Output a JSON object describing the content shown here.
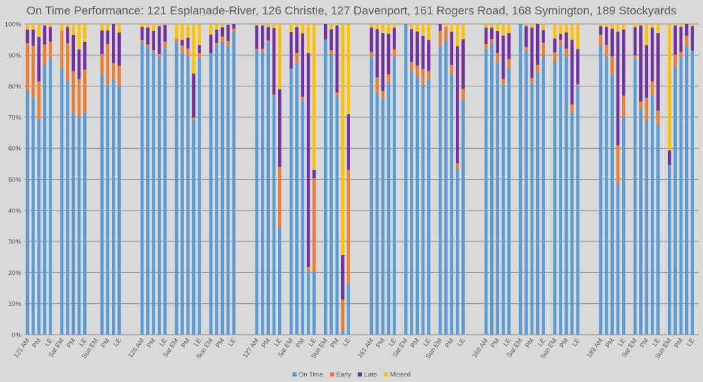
{
  "chart_data": {
    "type": "bar",
    "stacked": true,
    "title": "On Time Performance: 121 Esplanade-River, 126 Christie, 127 Davenport, 161 Rogers Road, 168 Symington, 189 Stockyards",
    "xlabel": "",
    "ylabel": "",
    "ylim": [
      0,
      100
    ],
    "y_ticks": [
      "0%",
      "10%",
      "20%",
      "30%",
      "40%",
      "50%",
      "60%",
      "70%",
      "80%",
      "90%",
      "100%"
    ],
    "grid": true,
    "legend_position": "bottom",
    "series_order": [
      "On Time",
      "Early",
      "Late",
      "Missed"
    ],
    "colors": {
      "On Time": "#5b9bd5",
      "Early": "#ed7d31",
      "Late": "#7030a0",
      "Missed": "#ffc000"
    },
    "legend": [
      {
        "name": "On Time",
        "color": "#5b9bd5"
      },
      {
        "name": "Early",
        "color": "#ed7d31"
      },
      {
        "name": "Late",
        "color": "#7030a0"
      },
      {
        "name": "Missed",
        "color": "#ffc000"
      }
    ],
    "groups": [
      {
        "route": "121",
        "tick_labels": [
          "121 AM",
          "",
          "PM",
          "",
          "LE",
          "Sat EM",
          "",
          "PM",
          "",
          "LE",
          "Sun EM",
          "",
          "PM",
          "",
          "LE"
        ],
        "bars": [
          {
            "on_time": 78.5,
            "early": 15.3,
            "late": 4.4,
            "missed": 1.8
          },
          {
            "on_time": 76.3,
            "early": 16.7,
            "late": 5.2,
            "missed": 1.8
          },
          {
            "on_time": 69.3,
            "early": 12.2,
            "late": 14.3,
            "missed": 4.2
          },
          {
            "on_time": 87.0,
            "early": 6.4,
            "late": 6.1,
            "missed": 0.5
          },
          {
            "on_time": 88.8,
            "early": 5.5,
            "late": 4.7,
            "missed": 1.0
          },
          {
            "on_time": 85.7,
            "early": 12.1,
            "late": 0.0,
            "missed": 2.2
          },
          {
            "on_time": 81.6,
            "early": 12.2,
            "late": 5.2,
            "missed": 1.0
          },
          {
            "on_time": 71.3,
            "early": 13.5,
            "late": 11.7,
            "missed": 3.5
          },
          {
            "on_time": 69.9,
            "early": 12.3,
            "late": 9.6,
            "missed": 8.2
          },
          {
            "on_time": 71.5,
            "early": 13.8,
            "late": 9.0,
            "missed": 5.7
          },
          null,
          {
            "on_time": 83.9,
            "early": 6.4,
            "late": 7.6,
            "missed": 2.1
          },
          {
            "on_time": 80.5,
            "early": 13.1,
            "late": 4.3,
            "missed": 2.1
          },
          {
            "on_time": 82.4,
            "early": 5.0,
            "late": 12.6,
            "missed": 0.0
          },
          {
            "on_time": 80.1,
            "early": 6.5,
            "late": 10.7,
            "missed": 2.7
          }
        ]
      },
      {
        "route": "126",
        "tick_labels": [
          "126 AM",
          "",
          "PM",
          "",
          "LE",
          "Sat EM",
          "",
          "PM",
          "",
          "LE",
          "Sun EM",
          "",
          "PM",
          "",
          "LE"
        ],
        "bars": [
          {
            "on_time": 94.1,
            "early": 0.8,
            "late": 4.2,
            "missed": 0.9
          },
          {
            "on_time": 92.4,
            "early": 1.0,
            "late": 5.4,
            "missed": 1.2
          },
          {
            "on_time": 90.9,
            "early": 0.7,
            "late": 6.2,
            "missed": 2.2
          },
          {
            "on_time": 89.2,
            "early": 1.1,
            "late": 9.0,
            "missed": 0.7
          },
          {
            "on_time": 92.5,
            "early": 1.8,
            "late": 5.4,
            "missed": 0.3
          },
          {
            "on_time": 94.2,
            "early": 1.1,
            "late": 0.0,
            "missed": 4.7
          },
          {
            "on_time": 90.9,
            "early": 2.2,
            "late": 1.8,
            "missed": 5.1
          },
          {
            "on_time": 89.6,
            "early": 2.5,
            "late": 3.5,
            "missed": 4.4
          },
          {
            "on_time": 69.3,
            "early": 0.6,
            "late": 14.1,
            "missed": 16.0
          },
          {
            "on_time": 89.0,
            "early": 1.6,
            "late": 2.6,
            "missed": 6.8
          },
          {
            "on_time": 90.7,
            "early": 0.0,
            "late": 5.9,
            "missed": 3.4
          },
          {
            "on_time": 93.4,
            "early": 0.4,
            "late": 4.4,
            "missed": 1.8
          },
          {
            "on_time": 94.2,
            "early": 1.8,
            "late": 2.9,
            "missed": 1.1
          },
          {
            "on_time": 93.0,
            "early": 1.5,
            "late": 5.3,
            "missed": 0.2
          },
          {
            "on_time": 97.8,
            "early": 0.7,
            "late": 1.5,
            "missed": 0.0
          }
        ]
      },
      {
        "route": "127",
        "tick_labels": [
          "127 AM",
          "",
          "PM",
          "",
          "LE",
          "Sat EM",
          "",
          "PM",
          "",
          "LE",
          "Sun EM",
          "",
          "PM",
          "",
          "LE"
        ],
        "bars": [
          {
            "on_time": 91.6,
            "early": 0.4,
            "late": 7.5,
            "missed": 0.5
          },
          {
            "on_time": 91.0,
            "early": 1.0,
            "late": 7.5,
            "missed": 0.5
          },
          {
            "on_time": 94.0,
            "early": 0.7,
            "late": 4.3,
            "missed": 1.0
          },
          {
            "on_time": 77.0,
            "early": 0.3,
            "late": 21.4,
            "missed": 1.3
          },
          {
            "on_time": 34.4,
            "early": 19.6,
            "late": 25.0,
            "missed": 21.0
          },
          {
            "on_time": 85.6,
            "early": 0.0,
            "late": 11.8,
            "missed": 2.6
          },
          {
            "on_time": 87.4,
            "early": 3.3,
            "late": 8.3,
            "missed": 1.0
          },
          {
            "on_time": 75.7,
            "early": 0.9,
            "late": 20.4,
            "missed": 3.0
          },
          {
            "on_time": 20.5,
            "early": 1.3,
            "late": 68.9,
            "missed": 9.3
          },
          {
            "on_time": 20.5,
            "early": 29.8,
            "late": 2.7,
            "missed": 47.0
          },
          {
            "on_time": 95.0,
            "early": 0.0,
            "late": 5.0,
            "missed": 0.0
          },
          {
            "on_time": 90.3,
            "early": 1.3,
            "late": 6.7,
            "missed": 1.7
          },
          {
            "on_time": 76.8,
            "early": 1.2,
            "late": 21.5,
            "missed": 0.5
          },
          {
            "on_time": 1.3,
            "early": 10.0,
            "late": 14.3,
            "missed": 74.4
          },
          {
            "on_time": 16.5,
            "early": 36.5,
            "late": 18.0,
            "missed": 29.0
          }
        ]
      },
      {
        "route": "161",
        "tick_labels": [
          "161 AM",
          "",
          "PM",
          "",
          "LE",
          "Sat EM",
          "",
          "PM",
          "",
          "LE",
          "Sun EM",
          "",
          "PM",
          "",
          "LE"
        ],
        "bars": [
          {
            "on_time": 89.2,
            "early": 1.8,
            "late": 7.8,
            "missed": 1.2
          },
          {
            "on_time": 77.9,
            "early": 4.9,
            "late": 15.6,
            "missed": 1.6
          },
          {
            "on_time": 76.2,
            "early": 2.2,
            "late": 18.7,
            "missed": 2.9
          },
          {
            "on_time": 81.3,
            "early": 2.5,
            "late": 13.0,
            "missed": 3.2
          },
          {
            "on_time": 89.6,
            "early": 2.3,
            "late": 6.9,
            "missed": 1.2
          },
          {
            "on_time": 100.0,
            "early": 0.0,
            "late": 0.0,
            "missed": 0.0
          },
          {
            "on_time": 84.8,
            "early": 3.0,
            "late": 10.6,
            "missed": 1.6
          },
          {
            "on_time": 83.1,
            "early": 3.5,
            "late": 11.0,
            "missed": 2.4
          },
          {
            "on_time": 80.6,
            "early": 4.9,
            "late": 10.7,
            "missed": 3.8
          },
          {
            "on_time": 82.6,
            "early": 2.2,
            "late": 10.1,
            "missed": 5.1
          },
          {
            "on_time": 93.1,
            "early": 4.7,
            "late": 2.2,
            "missed": 0.0
          },
          {
            "on_time": 94.9,
            "early": 4.1,
            "late": 0.0,
            "missed": 1.0
          },
          {
            "on_time": 84.0,
            "early": 2.8,
            "late": 10.7,
            "missed": 2.5
          },
          {
            "on_time": 53.4,
            "early": 1.7,
            "late": 37.8,
            "missed": 7.1
          },
          {
            "on_time": 75.4,
            "early": 3.7,
            "late": 16.0,
            "missed": 4.9
          }
        ]
      },
      {
        "route": "168",
        "tick_labels": [
          "168 AM",
          "",
          "PM",
          "",
          "LE",
          "Sat EM",
          "",
          "PM",
          "",
          "LE",
          "Sun EM",
          "",
          "PM",
          "",
          "LE"
        ],
        "bars": [
          {
            "on_time": 92.1,
            "early": 1.5,
            "late": 5.2,
            "missed": 1.2
          },
          {
            "on_time": 93.8,
            "early": 1.3,
            "late": 3.7,
            "missed": 1.2
          },
          {
            "on_time": 87.7,
            "early": 3.0,
            "late": 7.1,
            "missed": 2.2
          },
          {
            "on_time": 80.4,
            "early": 1.8,
            "late": 14.1,
            "missed": 3.7
          },
          {
            "on_time": 85.9,
            "early": 2.8,
            "late": 8.4,
            "missed": 2.9
          },
          {
            "on_time": 100.0,
            "early": 0.0,
            "late": 0.0,
            "missed": 0.0
          },
          {
            "on_time": 91.6,
            "early": 1.0,
            "late": 6.7,
            "missed": 0.7
          },
          {
            "on_time": 81.1,
            "early": 1.5,
            "late": 16.2,
            "missed": 1.2
          },
          {
            "on_time": 84.4,
            "early": 2.4,
            "late": 13.2,
            "missed": 0.0
          },
          {
            "on_time": 89.9,
            "early": 4.1,
            "late": 4.0,
            "missed": 2.0
          },
          {
            "on_time": 88.1,
            "early": 2.8,
            "late": 4.4,
            "missed": 4.7
          },
          {
            "on_time": 93.2,
            "early": 1.7,
            "late": 1.9,
            "missed": 3.2
          },
          {
            "on_time": 89.2,
            "early": 2.9,
            "late": 5.2,
            "missed": 2.7
          },
          {
            "on_time": 71.5,
            "early": 2.6,
            "late": 20.8,
            "missed": 5.1
          },
          {
            "on_time": 80.1,
            "early": 0.6,
            "late": 11.2,
            "missed": 8.1
          }
        ]
      },
      {
        "route": "189",
        "tick_labels": [
          "189 AM",
          "",
          "PM",
          "",
          "LE",
          "Sat EM",
          "",
          "PM",
          "",
          "LE",
          "Sun EM",
          "",
          "PM",
          "",
          "LE"
        ],
        "bars": [
          {
            "on_time": 93.1,
            "early": 3.4,
            "late": 2.8,
            "missed": 0.7
          },
          {
            "on_time": 89.7,
            "early": 3.5,
            "late": 5.9,
            "missed": 0.9
          },
          {
            "on_time": 83.7,
            "early": 5.9,
            "late": 8.9,
            "missed": 1.5
          },
          {
            "on_time": 48.9,
            "early": 12.1,
            "late": 36.5,
            "missed": 2.5
          },
          {
            "on_time": 70.1,
            "early": 6.8,
            "late": 21.3,
            "missed": 1.8
          },
          {
            "on_time": 88.8,
            "early": 1.1,
            "late": 9.1,
            "missed": 1.0
          },
          {
            "on_time": 72.8,
            "early": 2.2,
            "late": 24.5,
            "missed": 0.5
          },
          {
            "on_time": 69.1,
            "early": 7.1,
            "late": 17.0,
            "missed": 6.8
          },
          {
            "on_time": 77.2,
            "early": 4.3,
            "late": 17.3,
            "missed": 1.2
          },
          {
            "on_time": 67.6,
            "early": 4.5,
            "late": 25.0,
            "missed": 2.9
          },
          {
            "on_time": 54.6,
            "early": 0.0,
            "late": 4.7,
            "missed": 40.7
          },
          {
            "on_time": 86.2,
            "early": 3.9,
            "late": 9.4,
            "missed": 0.5
          },
          {
            "on_time": 89.2,
            "early": 1.7,
            "late": 8.2,
            "missed": 0.9
          },
          {
            "on_time": 92.9,
            "early": 3.3,
            "late": 3.8,
            "missed": 0.0
          },
          {
            "on_time": 91.4,
            "early": 0.0,
            "late": 7.9,
            "missed": 0.7
          }
        ]
      }
    ]
  }
}
